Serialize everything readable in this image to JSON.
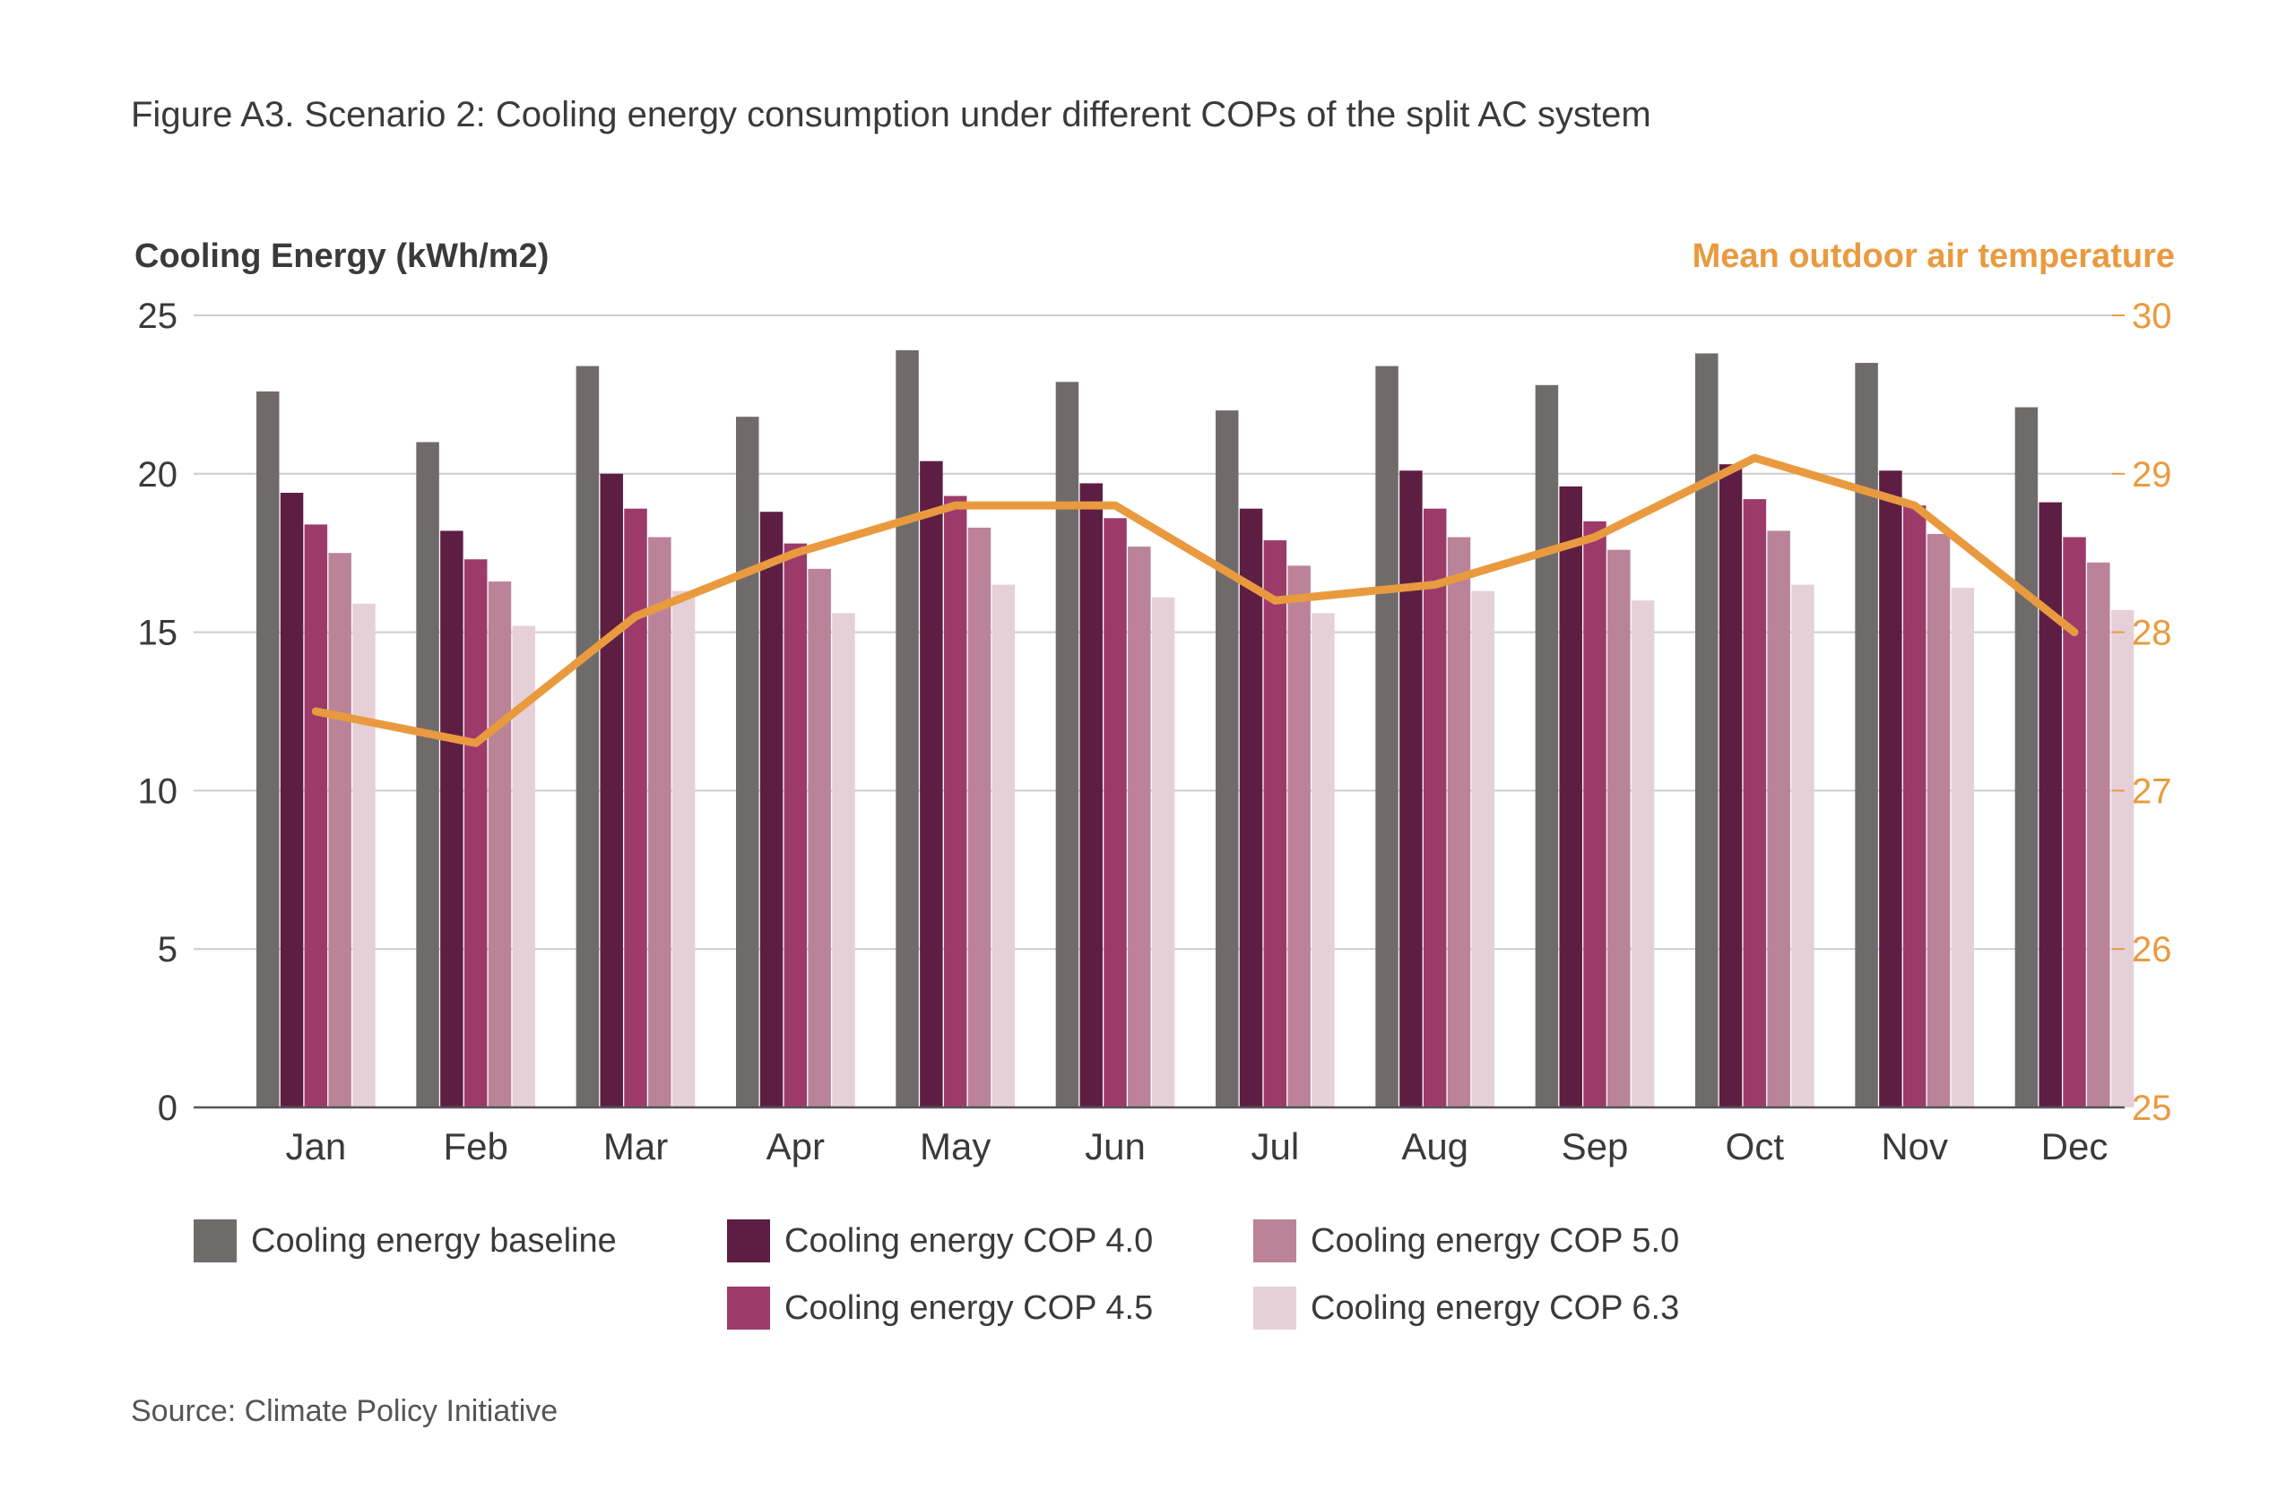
{
  "figure_title": "Figure A3. Scenario 2: Cooling energy consumption under different COPs of the split AC system",
  "source": "Source: Climate Policy Initiative",
  "colors": {
    "baseline": "#706b6b",
    "cop40": "#5e1e43",
    "cop45": "#9c3b6a",
    "cop50": "#ba8398",
    "cop63": "#e6d0d8",
    "temperature": "#e99a3f",
    "grid": "#cccccc",
    "axis": "#555555"
  },
  "chart_data": {
    "type": "bar",
    "categories": [
      "Jan",
      "Feb",
      "Mar",
      "Apr",
      "May",
      "Jun",
      "Jul",
      "Aug",
      "Sep",
      "Oct",
      "Nov",
      "Dec"
    ],
    "ylabel": "Cooling Energy (kWh/m2)",
    "ylim": [
      0,
      25
    ],
    "yticks": [
      0,
      5,
      10,
      15,
      20,
      25
    ],
    "y2label": "Mean outdoor air temperature",
    "y2lim": [
      25,
      30
    ],
    "y2ticks": [
      25,
      26,
      27,
      28,
      29,
      30
    ],
    "grid": true,
    "legend_position": "bottom",
    "series": [
      {
        "name": "Cooling energy baseline",
        "type": "bar",
        "color_key": "baseline",
        "values": [
          22.6,
          21.0,
          23.4,
          21.8,
          23.9,
          22.9,
          22.0,
          23.4,
          22.8,
          23.8,
          23.5,
          22.1
        ]
      },
      {
        "name": "Cooling energy COP 4.0",
        "type": "bar",
        "color_key": "cop40",
        "values": [
          19.4,
          18.2,
          20.0,
          18.8,
          20.4,
          19.7,
          18.9,
          20.1,
          19.6,
          20.3,
          20.1,
          19.1
        ]
      },
      {
        "name": "Cooling energy COP 4.5",
        "type": "bar",
        "color_key": "cop45",
        "values": [
          18.4,
          17.3,
          18.9,
          17.8,
          19.3,
          18.6,
          17.9,
          18.9,
          18.5,
          19.2,
          19.0,
          18.0
        ]
      },
      {
        "name": "Cooling energy COP 5.0",
        "type": "bar",
        "color_key": "cop50",
        "values": [
          17.5,
          16.6,
          18.0,
          17.0,
          18.3,
          17.7,
          17.1,
          18.0,
          17.6,
          18.2,
          18.1,
          17.2
        ]
      },
      {
        "name": "Cooling energy COP 6.3",
        "type": "bar",
        "color_key": "cop63",
        "values": [
          15.9,
          15.2,
          16.3,
          15.6,
          16.5,
          16.1,
          15.6,
          16.3,
          16.0,
          16.5,
          16.4,
          15.7
        ]
      },
      {
        "type": "line",
        "axis": "y2",
        "color_key": "temperature",
        "values": [
          27.5,
          27.3,
          28.1,
          28.5,
          28.8,
          28.8,
          28.2,
          28.3,
          28.6,
          29.1,
          28.8,
          28.0
        ]
      }
    ]
  }
}
